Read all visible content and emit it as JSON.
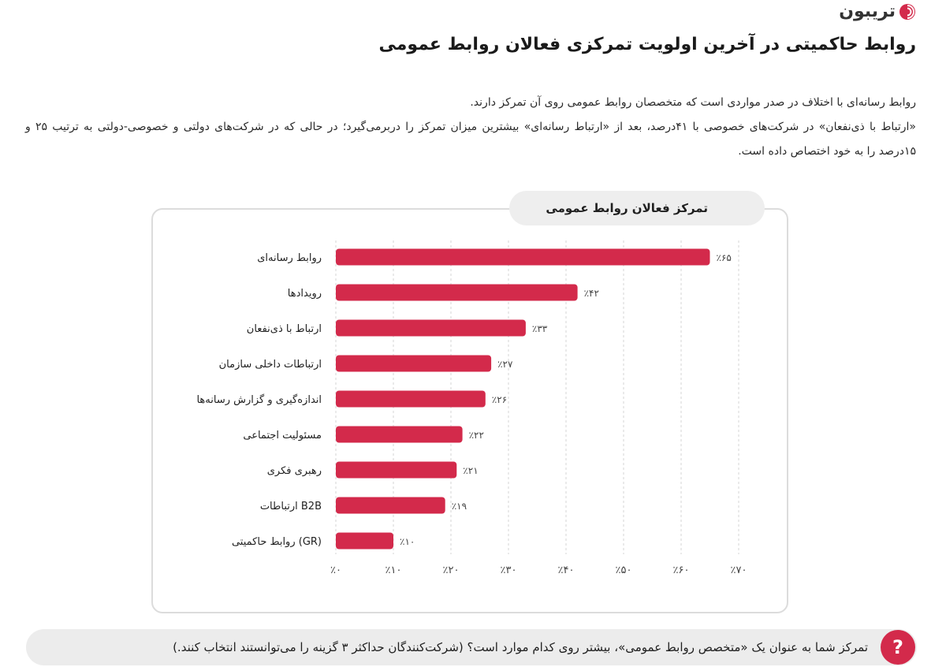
{
  "brand": {
    "name": "تریبون",
    "color": "#d32a4b"
  },
  "header": {
    "title": "روابط حاکمیتی در آخرین اولویت تمرکزی فعالان روابط عمومی"
  },
  "intro": {
    "line1": "روابط رسانه‌ای با اختلاف در صدر مواردی است که متخصصان روابط عمومی روی آن تمرکز دارند.",
    "line2": "«ارتباط با ذی‌نفعان» در شرکت‌های خصوصی با ۴۱درصد، بعد از «ارتباط رسانه‌ای» بیشترین میزان تمرکز را دربرمی‌گیرد؛ در حالی که در شرکت‌های دولتی و خصوصی-دولتی به ترتیب ۲۵ و ۱۵درصد را به خود اختصاص داده است."
  },
  "chart_data": {
    "type": "bar",
    "orientation": "horizontal",
    "title": "تمرکز فعالان روابط عمومی",
    "categories": [
      "روابط رسانه‌ای",
      "رویدادها",
      "ارتباط با ذی‌نفعان",
      "ارتباطات داخلی سازمان",
      "اندازه‌گیری و گزارش رسانه‌ها",
      "مسئولیت اجتماعی",
      "رهبری فکری",
      "ارتباطات B2B",
      "روابط حاکمیتی (GR)"
    ],
    "values": [
      65,
      42,
      33,
      27,
      26,
      22,
      21,
      19,
      10
    ],
    "value_labels": [
      "٪۶۵",
      "٪۴۲",
      "٪۳۳",
      "٪۲۷",
      "٪۲۶",
      "٪۲۲",
      "٪۲۱",
      "٪۱۹",
      "٪۱۰"
    ],
    "xlim": [
      0,
      70
    ],
    "x_ticks": [
      0,
      10,
      20,
      30,
      40,
      50,
      60,
      70
    ],
    "x_tick_labels": [
      "٪۰",
      "٪۱۰",
      "٪۲۰",
      "٪۳۰",
      "٪۴۰",
      "٪۵۰",
      "٪۶۰",
      "٪۷۰"
    ],
    "grid": "vertical dashed",
    "bar_color": "#d32a4b",
    "grid_color": "#d5d5d5"
  },
  "footer": {
    "question_icon": "?",
    "question": "تمرکز شما به عنوان یک «متخصص روابط عمومی»، بیشتر روی کدام موارد است؟ (شرکت‌کنندگان حداکثر ۳ گزینه را می‌توانستند انتخاب کنند.)"
  }
}
